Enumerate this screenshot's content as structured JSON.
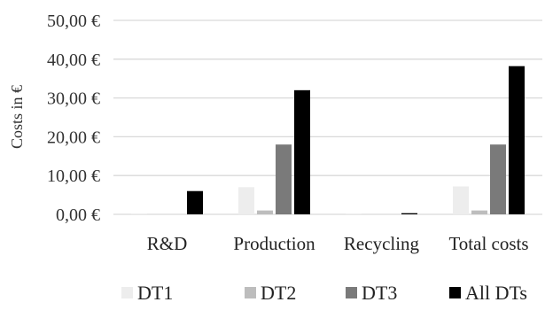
{
  "chart_data": {
    "type": "bar",
    "categories": [
      "R&D",
      "Production",
      "Recycling",
      "Total costs"
    ],
    "series": [
      {
        "name": "DT1",
        "color": "#ededed",
        "values": [
          0.2,
          7.0,
          0.2,
          7.2
        ]
      },
      {
        "name": "DT2",
        "color": "#bdbdbd",
        "values": [
          0.0,
          1.0,
          0.0,
          1.0
        ]
      },
      {
        "name": "DT3",
        "color": "#7a7a7a",
        "values": [
          0.0,
          18.0,
          0.0,
          18.0
        ]
      },
      {
        "name": "All DTs",
        "color": "#000000",
        "values": [
          6.0,
          32.0,
          0.3,
          38.2
        ]
      }
    ],
    "ylabel": "Costs in €",
    "ylim": [
      0,
      50
    ],
    "yticks": [
      {
        "value": 0,
        "label": "0,00 €"
      },
      {
        "value": 10,
        "label": "10,00 €"
      },
      {
        "value": 20,
        "label": "20,00 €"
      },
      {
        "value": 30,
        "label": "30,00 €"
      },
      {
        "value": 40,
        "label": "40,00 €"
      },
      {
        "value": 50,
        "label": "50,00 €"
      }
    ],
    "grid": true,
    "legend_position": "bottom"
  }
}
